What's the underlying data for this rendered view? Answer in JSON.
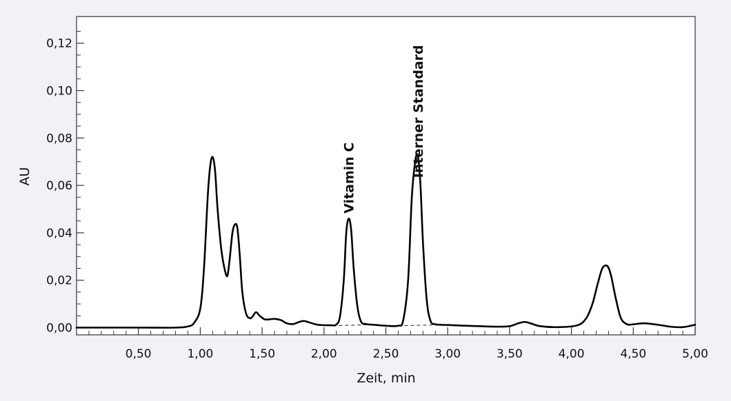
{
  "chart_data": {
    "type": "line",
    "xlabel": "Zeit, min",
    "ylabel": "AU",
    "xlim": [
      0.0,
      5.0
    ],
    "ylim": [
      0.0,
      0.13
    ],
    "x_ticks": [
      {
        "value": 0.5,
        "label": "0,50"
      },
      {
        "value": 1.0,
        "label": "1,00"
      },
      {
        "value": 1.5,
        "label": "1,50"
      },
      {
        "value": 2.0,
        "label": "2,00"
      },
      {
        "value": 2.5,
        "label": "2,50"
      },
      {
        "value": 3.0,
        "label": "3,00"
      },
      {
        "value": 3.5,
        "label": "3,50"
      },
      {
        "value": 4.0,
        "label": "4,00"
      },
      {
        "value": 4.5,
        "label": "4,50"
      },
      {
        "value": 5.0,
        "label": "5,00"
      }
    ],
    "y_ticks": [
      {
        "value": 0.0,
        "label": "0,00"
      },
      {
        "value": 0.02,
        "label": "0,02"
      },
      {
        "value": 0.04,
        "label": "0,04"
      },
      {
        "value": 0.06,
        "label": "0,06"
      },
      {
        "value": 0.08,
        "label": "0,08"
      },
      {
        "value": 0.1,
        "label": "0,10"
      },
      {
        "value": 0.12,
        "label": "0,12"
      }
    ],
    "grid": false,
    "series": [
      {
        "x": [
          0.0,
          0.5,
          0.8,
          0.9,
          0.95,
          1.0,
          1.03,
          1.06,
          1.08,
          1.1,
          1.12,
          1.14,
          1.17,
          1.2,
          1.22,
          1.24,
          1.26,
          1.28,
          1.3,
          1.32,
          1.34,
          1.37,
          1.4,
          1.42,
          1.45,
          1.48,
          1.52,
          1.56,
          1.6,
          1.65,
          1.7,
          1.75,
          1.8,
          1.84,
          1.88,
          1.95,
          2.05,
          2.1,
          2.13,
          2.16,
          2.18,
          2.2,
          2.22,
          2.24,
          2.27,
          2.3,
          2.34,
          2.4,
          2.5,
          2.6,
          2.64,
          2.68,
          2.71,
          2.74,
          2.76,
          2.78,
          2.8,
          2.83,
          2.86,
          2.9,
          3.0,
          3.2,
          3.4,
          3.5,
          3.57,
          3.62,
          3.67,
          3.75,
          3.9,
          4.05,
          4.12,
          4.17,
          4.21,
          4.25,
          4.29,
          4.32,
          4.36,
          4.4,
          4.45,
          4.5,
          4.55,
          4.6,
          4.7,
          4.8,
          4.9,
          5.0
        ],
        "y": [
          0.0,
          0.0,
          0.0,
          0.0005,
          0.002,
          0.008,
          0.025,
          0.055,
          0.068,
          0.072,
          0.066,
          0.05,
          0.033,
          0.024,
          0.022,
          0.03,
          0.04,
          0.0435,
          0.042,
          0.03,
          0.015,
          0.006,
          0.004,
          0.0045,
          0.0065,
          0.005,
          0.0035,
          0.0035,
          0.0037,
          0.0032,
          0.0018,
          0.0015,
          0.0024,
          0.0028,
          0.0022,
          0.0012,
          0.001,
          0.0013,
          0.005,
          0.02,
          0.04,
          0.046,
          0.041,
          0.025,
          0.009,
          0.0025,
          0.0015,
          0.0012,
          0.0008,
          0.0008,
          0.003,
          0.02,
          0.055,
          0.071,
          0.072,
          0.06,
          0.036,
          0.012,
          0.003,
          0.0014,
          0.0011,
          0.0007,
          0.0004,
          0.0006,
          0.0018,
          0.0024,
          0.0018,
          0.0006,
          0.0002,
          0.001,
          0.004,
          0.01,
          0.018,
          0.025,
          0.026,
          0.022,
          0.012,
          0.004,
          0.0014,
          0.0014,
          0.0017,
          0.0018,
          0.0012,
          0.0004,
          0.0002,
          0.0012
        ]
      }
    ],
    "baselines": [
      {
        "x": [
          2.07,
          2.35
        ],
        "y": [
          0.0008,
          0.0012
        ]
      },
      {
        "x": [
          2.6,
          2.95
        ],
        "y": [
          0.0008,
          0.0012
        ]
      }
    ],
    "annotations": [
      {
        "label": "Vitamin C",
        "x": 2.2,
        "y": 0.047
      },
      {
        "label": "Interner Standard",
        "x": 2.76,
        "y": 0.062
      }
    ]
  }
}
